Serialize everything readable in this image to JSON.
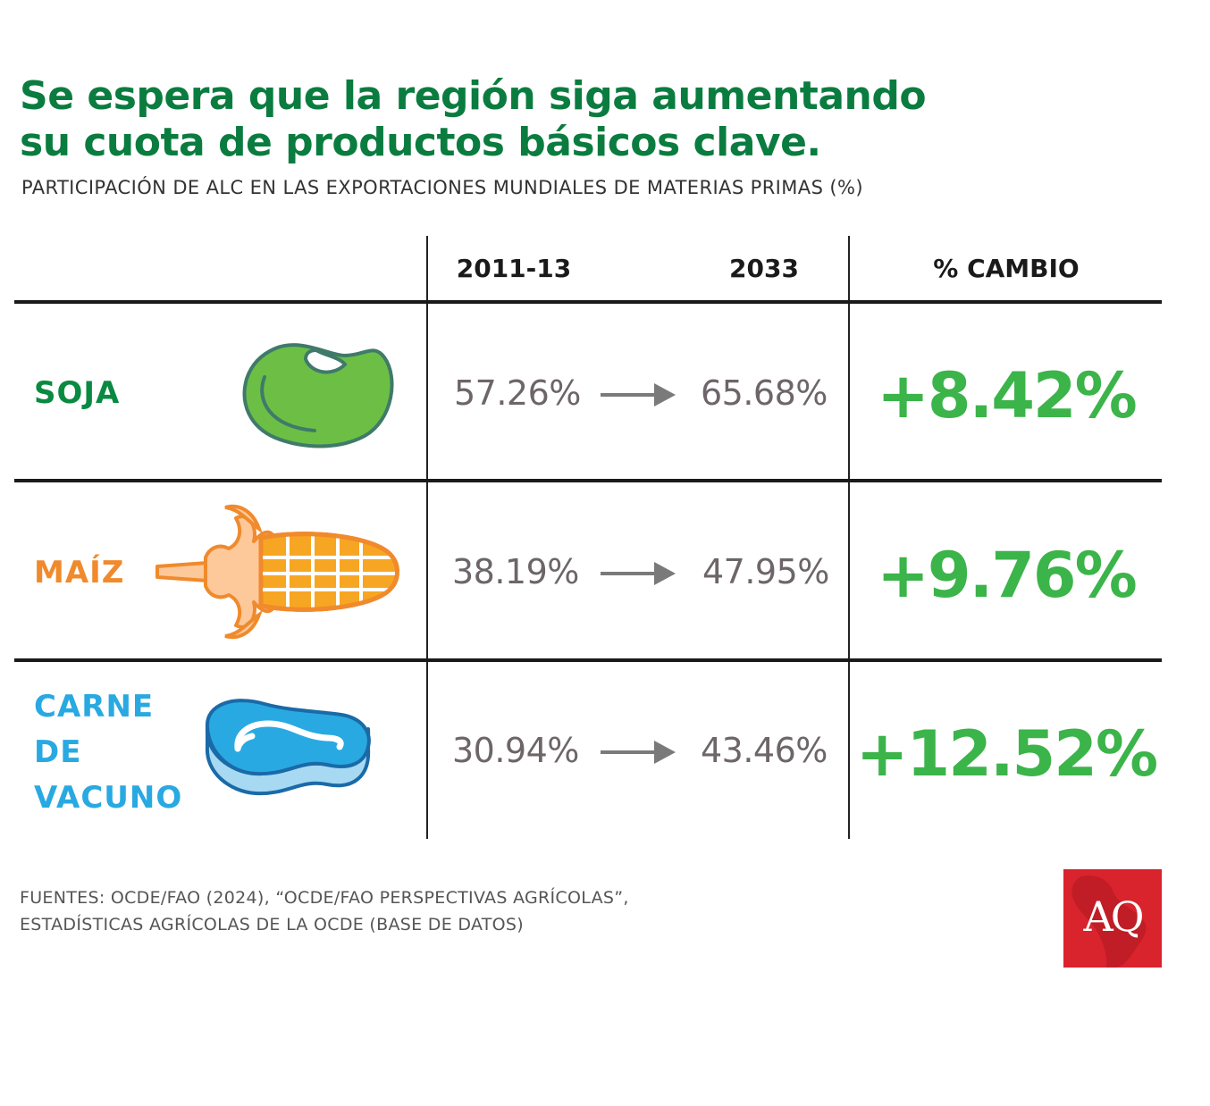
{
  "title": {
    "line1": "Se espera que la región siga aumentando",
    "line2": "su cuota de productos básicos clave."
  },
  "subtitle": "PARTICIPACIÓN DE ALC EN LAS EXPORTACIONES MUNDIALES DE MATERIAS PRIMAS (%)",
  "columns": {
    "col1": "2011-13",
    "col2": "2033",
    "col3": "% CAMBIO"
  },
  "chart_data": {
    "type": "table",
    "title": "Se espera que la región siga aumentando su cuota de productos básicos clave.",
    "subtitle": "PARTICIPACIÓN DE ALC EN LAS EXPORTACIONES MUNDIALES DE MATERIAS PRIMAS (%)",
    "columns": [
      "2011-13",
      "2033",
      "% CAMBIO"
    ],
    "rows": [
      {
        "label": "SOJA",
        "label_lines": [
          "SOJA"
        ],
        "v2011": "57.26%",
        "v2033": "65.68%",
        "change": "+8.42%",
        "values": [
          57.26,
          65.68,
          8.42
        ],
        "color": "#0a8a41",
        "icon": "soybean-icon"
      },
      {
        "label": "MAÍZ",
        "label_lines": [
          "MAÍZ"
        ],
        "v2011": "38.19%",
        "v2033": "47.95%",
        "change": "+9.76%",
        "values": [
          38.19,
          47.95,
          9.76
        ],
        "color": "#f08a2c",
        "icon": "corn-icon"
      },
      {
        "label": "CARNE DE VACUNO",
        "label_lines": [
          "CARNE",
          "DE",
          "VACUNO"
        ],
        "v2011": "30.94%",
        "v2033": "43.46%",
        "change": "+12.52%",
        "values": [
          30.94,
          43.46,
          12.52
        ],
        "color": "#29a9e1",
        "icon": "beef-icon"
      }
    ]
  },
  "colors": {
    "title": "#0a7c3f",
    "change": "#3bb44a",
    "values": "#6d6569",
    "arrow": "#7a7a7a",
    "logo": "#d9232d"
  },
  "source": {
    "line1": "FUENTES: OCDE/FAO (2024), “OCDE/FAO PERSPECTIVAS AGRÍCOLAS”,",
    "line2": "ESTADÍSTICAS AGRÍCOLAS DE LA OCDE (BASE DE DATOS)"
  },
  "logo": "AQ"
}
